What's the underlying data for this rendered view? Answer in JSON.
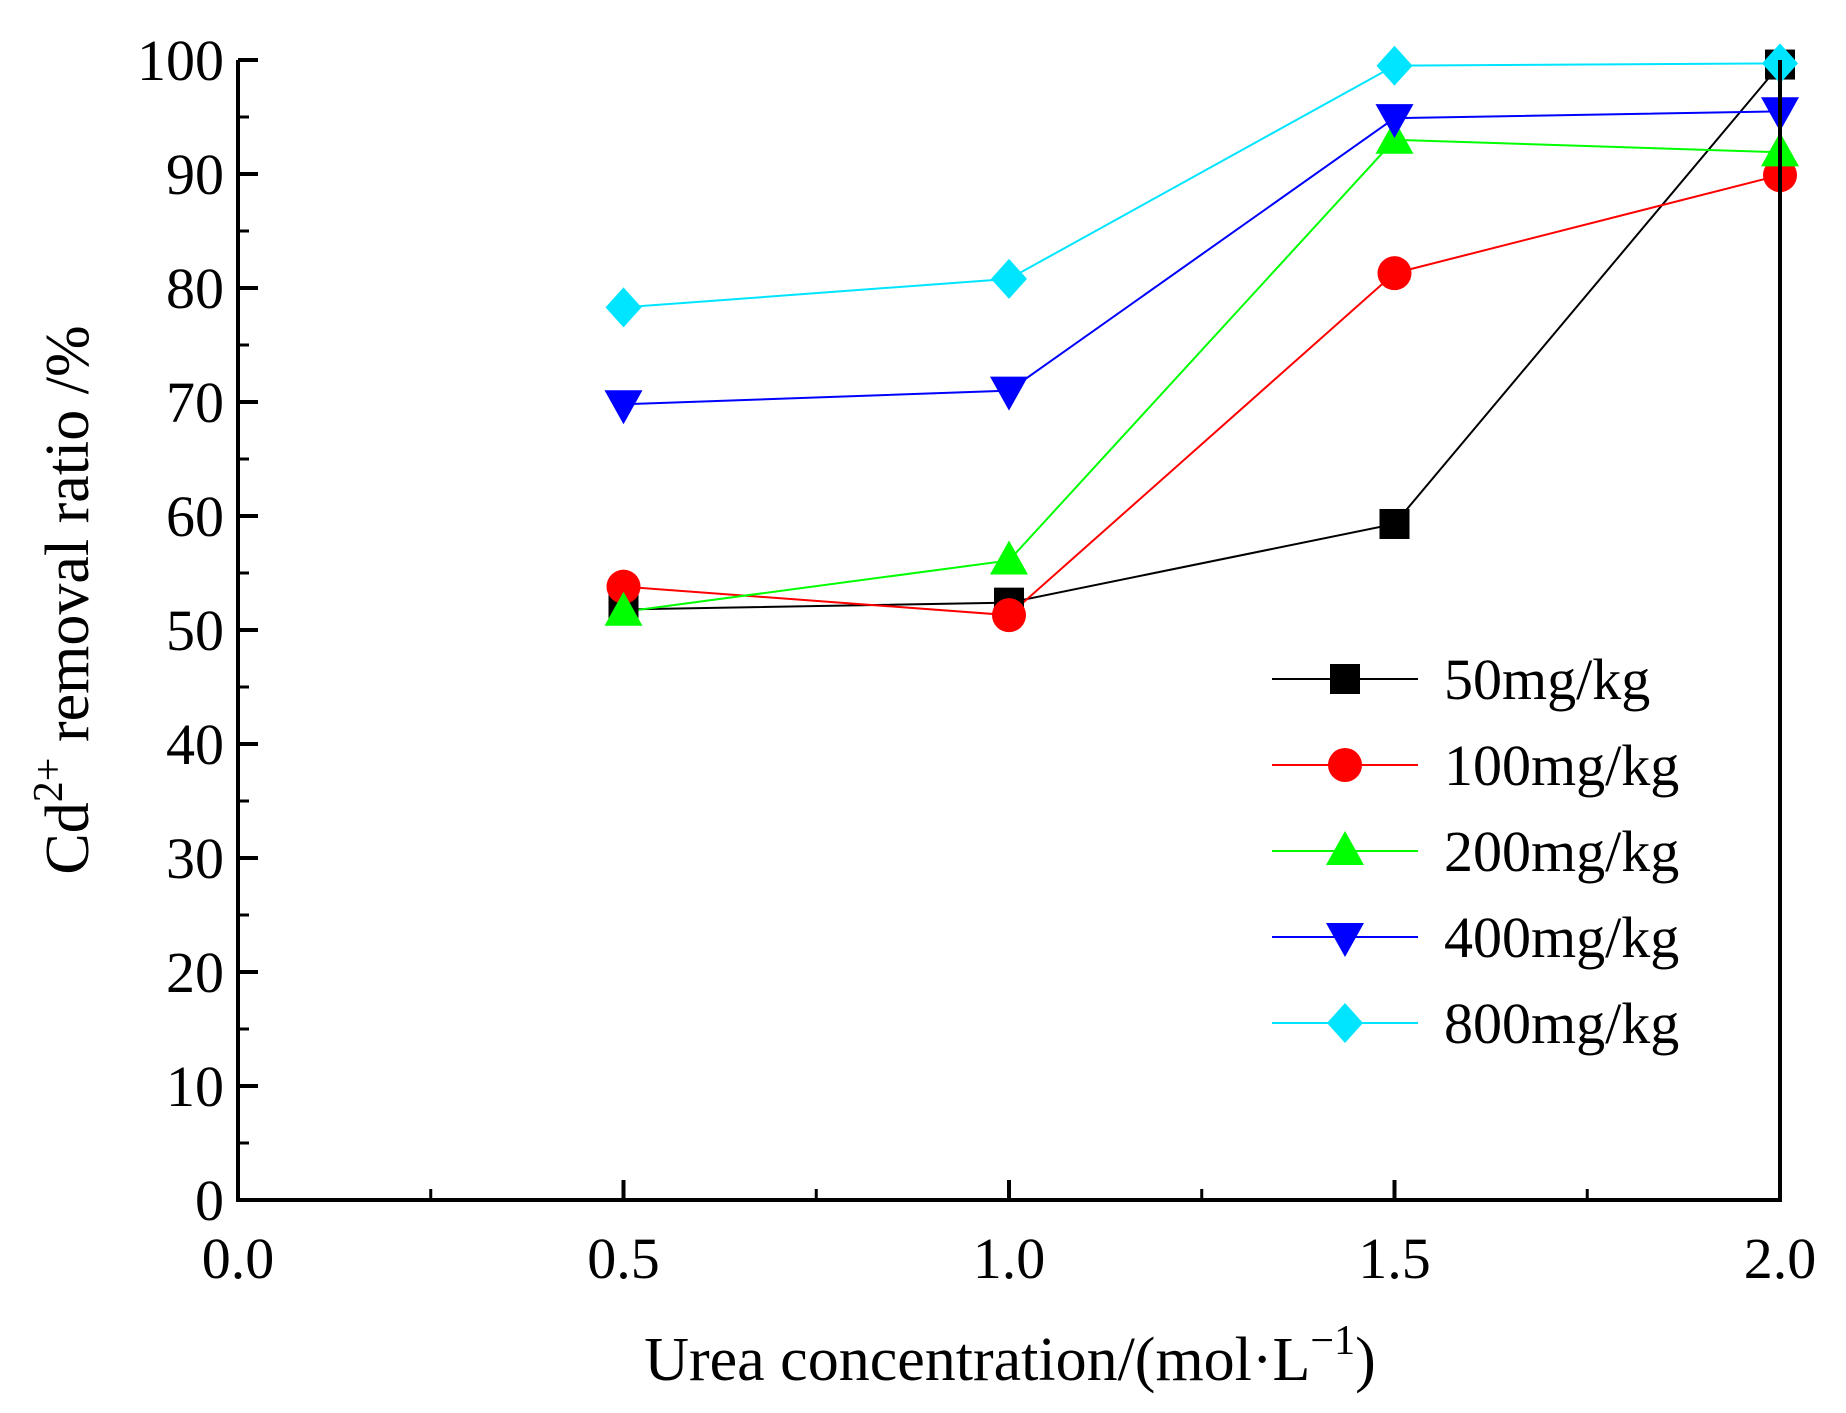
{
  "chart_data": {
    "type": "line",
    "xlabel": "Urea concentration/(mol·L",
    "xlabel_sup": "−1",
    "xlabel_tail": ")",
    "ylabel_prefix": "Cd",
    "ylabel_sup": "2+",
    "ylabel_tail": " removal ratio /%",
    "xlim": [
      0.0,
      2.0
    ],
    "ylim": [
      0,
      100
    ],
    "x_ticks": [
      "0.0",
      "0.5",
      "1.0",
      "1.5",
      "2.0"
    ],
    "y_ticks": [
      "0",
      "10",
      "20",
      "30",
      "40",
      "50",
      "60",
      "70",
      "80",
      "90",
      "100"
    ],
    "grid": false,
    "legend_position": "right",
    "x": [
      0.5,
      1.0,
      1.5,
      2.0
    ],
    "series": [
      {
        "name": "50mg/kg",
        "color": "#000000",
        "marker": "square",
        "values": [
          51.8,
          52.4,
          59.3,
          99.6
        ]
      },
      {
        "name": "100mg/kg",
        "color": "#ff0000",
        "marker": "circle",
        "values": [
          53.8,
          51.3,
          81.3,
          89.9
        ]
      },
      {
        "name": "200mg/kg",
        "color": "#00ff00",
        "marker": "triangle-up",
        "values": [
          51.6,
          56.1,
          93.0,
          91.9
        ]
      },
      {
        "name": "400mg/kg",
        "color": "#0000ff",
        "marker": "triangle-down",
        "values": [
          69.8,
          71.0,
          94.9,
          95.5
        ]
      },
      {
        "name": "800mg/kg",
        "color": "#00e5ff",
        "marker": "diamond",
        "values": [
          78.3,
          80.8,
          99.5,
          99.7
        ]
      }
    ]
  }
}
